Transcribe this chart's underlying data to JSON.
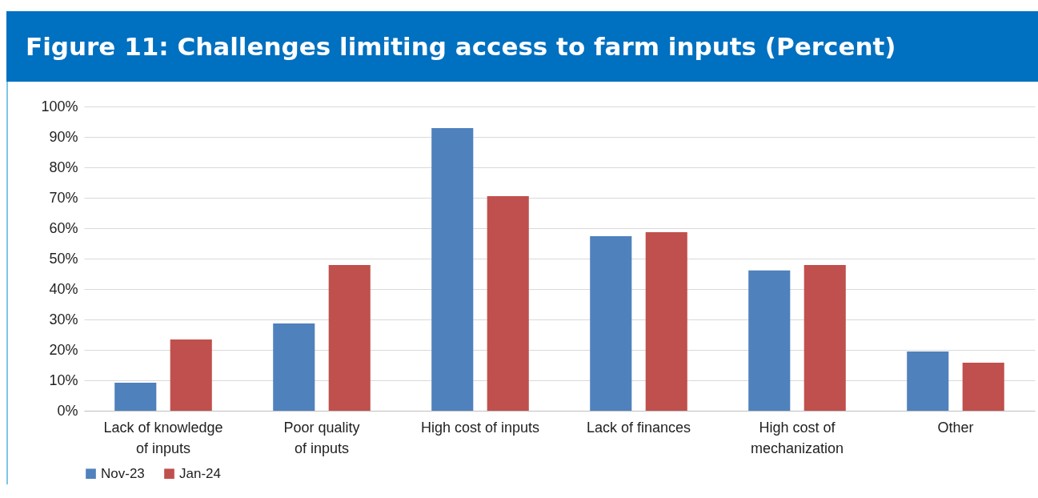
{
  "chart_data": {
    "type": "bar",
    "title": "Figure 11: Challenges limiting access to farm inputs (Percent)",
    "categories": [
      "Lack of knowledge of inputs",
      "Poor quality of inputs",
      "High cost of inputs",
      "Lack of finances",
      "High cost of mechanization",
      "Other"
    ],
    "series": [
      {
        "name": "Nov-23",
        "color": "#4f81bd",
        "values": [
          9.2,
          28.7,
          92.9,
          57.4,
          46.1,
          19.5
        ]
      },
      {
        "name": "Jan-24",
        "color": "#c0504d",
        "values": [
          23.4,
          47.9,
          70.5,
          58.7,
          47.9,
          15.8
        ]
      }
    ],
    "ylim": [
      0,
      100
    ],
    "yticks": [
      {
        "value": 0,
        "label": "0%"
      },
      {
        "value": 10,
        "label": "10%"
      },
      {
        "value": 20,
        "label": "20%"
      },
      {
        "value": 30,
        "label": "30%"
      },
      {
        "value": 40,
        "label": "40%"
      },
      {
        "value": 50,
        "label": "50%"
      },
      {
        "value": 60,
        "label": "60%"
      },
      {
        "value": 70,
        "label": "70%"
      },
      {
        "value": 80,
        "label": "80%"
      },
      {
        "value": 90,
        "label": "90%"
      },
      {
        "value": 100,
        "label": "100%"
      }
    ],
    "grid": "y",
    "legend": "bottom"
  }
}
